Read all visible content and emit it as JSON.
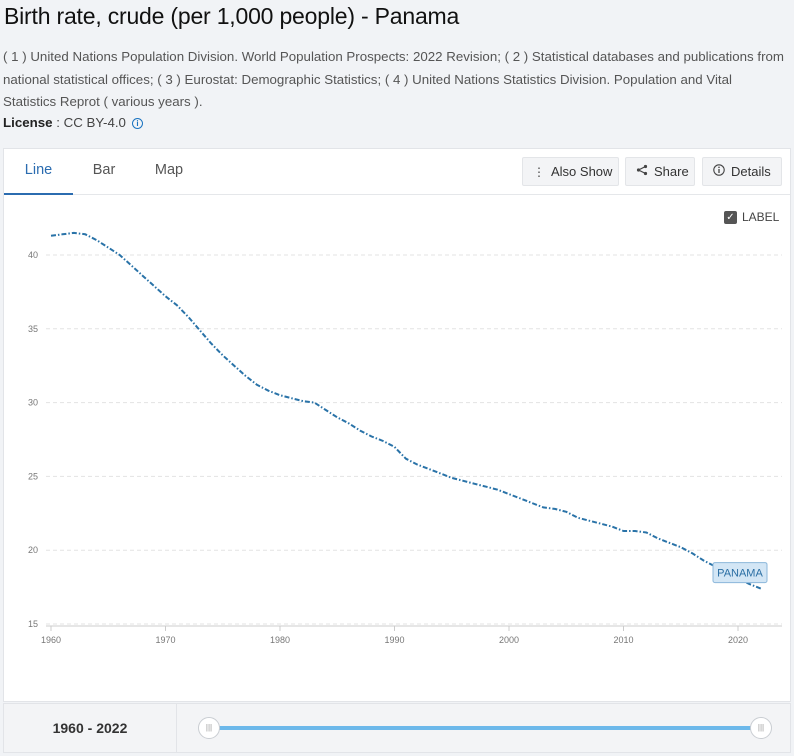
{
  "header": {
    "title": "Birth rate, crude (per 1,000 people) - Panama",
    "sources": "( 1 ) United Nations Population Division. World Population Prospects: 2022 Revision; ( 2 ) Statistical databases and publications from national statistical offices; ( 3 ) Eurostat: Demographic Statistics; ( 4 ) United Nations Statistics Division. Population and Vital Statistics Reprot ( various years ).",
    "license_label": "License",
    "license_value": " : CC BY-4.0"
  },
  "tabs": [
    {
      "label": "Line"
    },
    {
      "label": "Bar"
    },
    {
      "label": "Map"
    }
  ],
  "toolbar": {
    "also_show": "Also Show",
    "share": "Share",
    "details": "Details"
  },
  "label_toggle": "LABEL",
  "range": {
    "start": "1960",
    "sep": " - ",
    "end": "2022"
  },
  "colors": {
    "series": "#2a73a8",
    "accent": "#2b6cb0",
    "slider": "#6cb8ea"
  },
  "chart_data": {
    "type": "line",
    "title": "",
    "xlabel": "",
    "ylabel": "",
    "xlim": [
      1960,
      2022
    ],
    "ylim": [
      15,
      42
    ],
    "x_ticks": [
      1960,
      1970,
      1980,
      1990,
      2000,
      2010,
      2020
    ],
    "y_ticks": [
      15,
      20,
      25,
      30,
      35,
      40
    ],
    "grid": true,
    "series": [
      {
        "name": "PANAMA",
        "x": [
          1960,
          1961,
          1962,
          1963,
          1964,
          1965,
          1966,
          1967,
          1968,
          1969,
          1970,
          1971,
          1972,
          1973,
          1974,
          1975,
          1976,
          1977,
          1978,
          1979,
          1980,
          1981,
          1982,
          1983,
          1984,
          1985,
          1986,
          1987,
          1988,
          1989,
          1990,
          1991,
          1992,
          1993,
          1994,
          1995,
          1996,
          1997,
          1998,
          1999,
          2000,
          2001,
          2002,
          2003,
          2004,
          2005,
          2006,
          2007,
          2008,
          2009,
          2010,
          2011,
          2012,
          2013,
          2014,
          2015,
          2016,
          2017,
          2018,
          2019,
          2020,
          2021,
          2022
        ],
        "values": [
          41.3,
          41.4,
          41.5,
          41.4,
          41.0,
          40.5,
          40.0,
          39.3,
          38.6,
          37.9,
          37.2,
          36.6,
          35.8,
          34.9,
          34.0,
          33.2,
          32.5,
          31.8,
          31.2,
          30.8,
          30.5,
          30.3,
          30.1,
          30.0,
          29.5,
          29.0,
          28.6,
          28.1,
          27.7,
          27.4,
          27.0,
          26.2,
          25.8,
          25.5,
          25.2,
          24.9,
          24.7,
          24.5,
          24.3,
          24.1,
          23.8,
          23.5,
          23.2,
          22.9,
          22.8,
          22.6,
          22.2,
          22.0,
          21.8,
          21.6,
          21.3,
          21.3,
          21.2,
          20.8,
          20.5,
          20.2,
          19.8,
          19.3,
          18.9,
          18.5,
          18.1,
          17.7,
          17.4
        ]
      }
    ]
  }
}
